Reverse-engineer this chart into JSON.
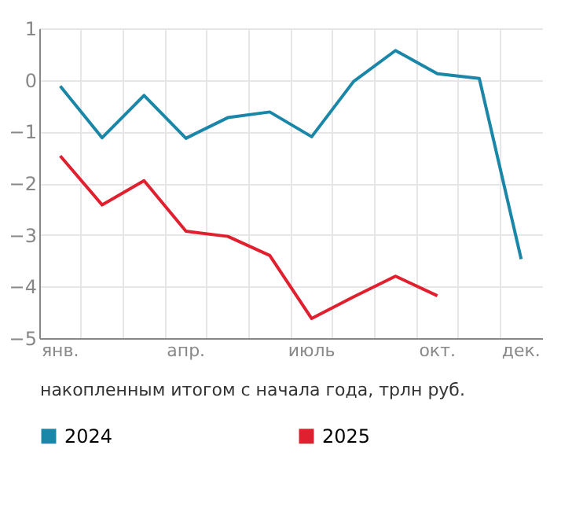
{
  "chart_data": {
    "type": "line",
    "xlabel": "накопленным итогом с начала года, трлн руб.",
    "categories": [
      "янв.",
      null,
      null,
      "апр.",
      null,
      null,
      "июль",
      null,
      null,
      "окт.",
      null,
      "дек."
    ],
    "series": [
      {
        "name": "2024",
        "color": "#1a86a8",
        "values": [
          -0.12,
          -1.12,
          -0.3,
          -1.13,
          -0.73,
          -0.62,
          -1.1,
          -0.03,
          0.57,
          0.12,
          0.03,
          -3.47
        ]
      },
      {
        "name": "2025",
        "color": "#e0202e",
        "values": [
          -1.47,
          -2.42,
          -1.95,
          -2.93,
          -3.03,
          -3.4,
          -4.62,
          -4.2,
          -3.8,
          -4.18,
          null,
          null
        ]
      }
    ],
    "ylim": [
      -5,
      1
    ],
    "yticks": [
      -5,
      -4,
      -3,
      -2,
      -1,
      0,
      1
    ],
    "grid": true,
    "legend": "bottom",
    "marker": "none",
    "line_style": "solid"
  }
}
